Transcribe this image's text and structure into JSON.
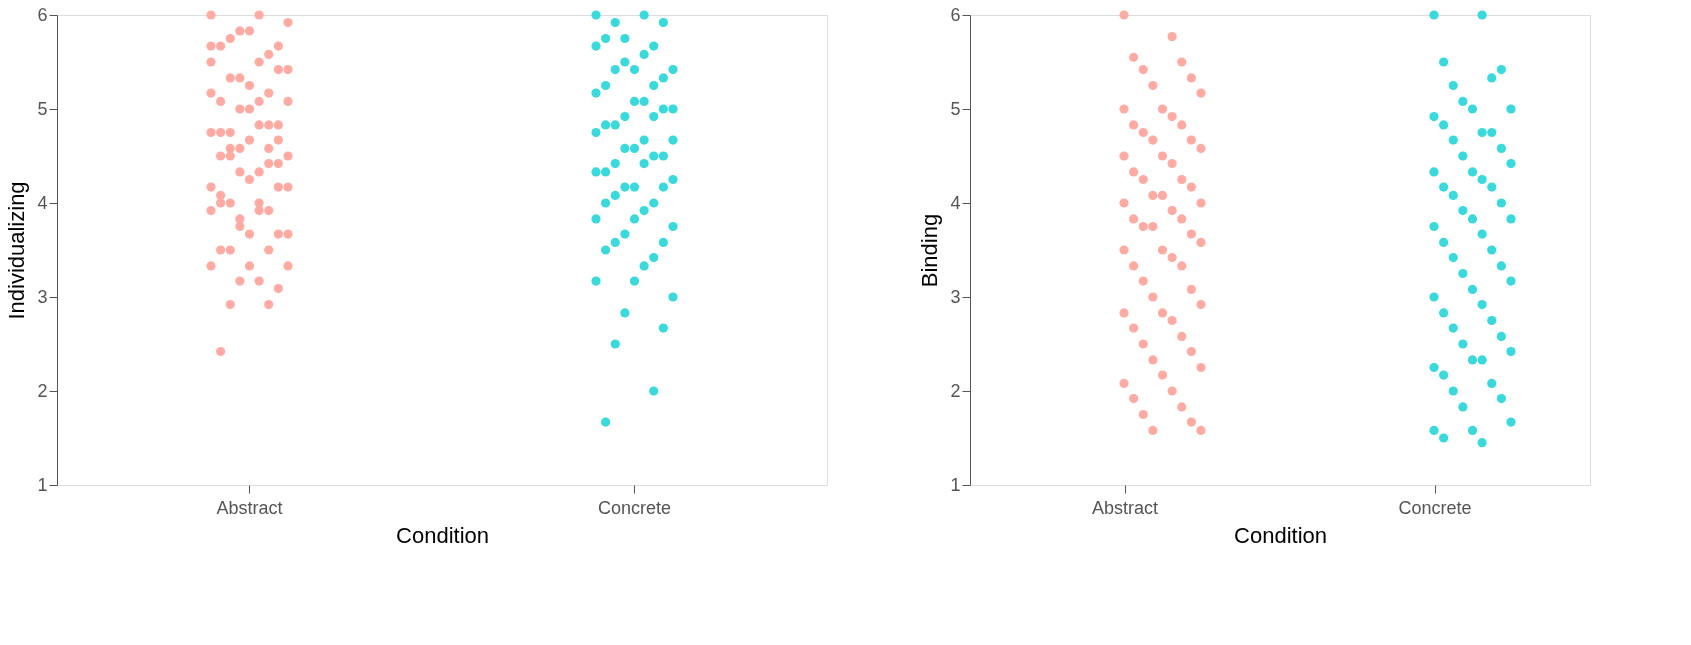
{
  "chart_data": [
    {
      "type": "scatter",
      "xlabel": "Condition",
      "ylabel": "Individualizing",
      "categories": [
        "Abstract",
        "Concrete"
      ],
      "ylim": [
        1,
        6
      ],
      "yticks": [
        1,
        2,
        3,
        4,
        5,
        6
      ],
      "grid": false,
      "marker": "circle",
      "series": [
        {
          "color": "#ffaba3",
          "x": [
            "Abstract",
            "Abstract",
            "Abstract",
            "Abstract",
            "Abstract",
            "Abstract",
            "Abstract",
            "Abstract",
            "Abstract",
            "Abstract",
            "Abstract",
            "Abstract",
            "Abstract",
            "Abstract",
            "Abstract",
            "Abstract",
            "Abstract",
            "Abstract",
            "Abstract",
            "Abstract",
            "Abstract",
            "Abstract",
            "Abstract",
            "Abstract",
            "Abstract",
            "Abstract",
            "Abstract",
            "Abstract",
            "Abstract",
            "Abstract",
            "Abstract",
            "Abstract",
            "Abstract",
            "Abstract",
            "Abstract",
            "Abstract",
            "Abstract",
            "Abstract",
            "Abstract",
            "Abstract",
            "Abstract",
            "Abstract",
            "Abstract",
            "Abstract",
            "Abstract",
            "Abstract",
            "Abstract",
            "Abstract",
            "Abstract",
            "Abstract",
            "Abstract",
            "Abstract",
            "Abstract",
            "Abstract",
            "Abstract",
            "Abstract",
            "Abstract",
            "Abstract",
            "Abstract",
            "Abstract",
            "Abstract",
            "Abstract",
            "Abstract",
            "Abstract",
            "Abstract",
            "Abstract",
            "Abstract",
            "Abstract",
            "Abstract",
            "Abstract"
          ],
          "values": [
            6.0,
            6.0,
            2.42,
            2.92,
            2.92,
            3.09,
            3.17,
            3.33,
            3.33,
            3.33,
            3.17,
            3.5,
            3.5,
            3.5,
            3.67,
            3.75,
            3.67,
            3.67,
            3.92,
            4.0,
            4.0,
            3.92,
            4.0,
            4.17,
            4.33,
            4.17,
            4.25,
            4.17,
            4.33,
            4.5,
            4.58,
            4.5,
            4.67,
            4.58,
            4.5,
            4.67,
            4.75,
            4.83,
            4.75,
            4.83,
            4.75,
            4.83,
            5.0,
            5.08,
            5.0,
            5.17,
            5.08,
            5.08,
            5.17,
            5.33,
            5.42,
            5.33,
            5.42,
            5.25,
            5.5,
            5.5,
            5.67,
            5.58,
            5.75,
            5.67,
            5.83,
            5.92,
            5.83,
            5.67,
            3.92,
            4.08,
            4.42,
            4.58,
            4.42,
            3.83
          ]
        },
        {
          "color": "#3ad9dc",
          "x": [
            "Concrete",
            "Concrete",
            "Concrete",
            "Concrete",
            "Concrete",
            "Concrete",
            "Concrete",
            "Concrete",
            "Concrete",
            "Concrete",
            "Concrete",
            "Concrete",
            "Concrete",
            "Concrete",
            "Concrete",
            "Concrete",
            "Concrete",
            "Concrete",
            "Concrete",
            "Concrete",
            "Concrete",
            "Concrete",
            "Concrete",
            "Concrete",
            "Concrete",
            "Concrete",
            "Concrete",
            "Concrete",
            "Concrete",
            "Concrete",
            "Concrete",
            "Concrete",
            "Concrete",
            "Concrete",
            "Concrete",
            "Concrete",
            "Concrete",
            "Concrete",
            "Concrete",
            "Concrete",
            "Concrete",
            "Concrete",
            "Concrete",
            "Concrete",
            "Concrete",
            "Concrete",
            "Concrete",
            "Concrete",
            "Concrete",
            "Concrete",
            "Concrete",
            "Concrete",
            "Concrete",
            "Concrete",
            "Concrete",
            "Concrete",
            "Concrete",
            "Concrete",
            "Concrete",
            "Concrete",
            "Concrete"
          ],
          "values": [
            6.0,
            6.0,
            1.67,
            2.0,
            2.5,
            2.67,
            2.83,
            3.0,
            3.17,
            3.17,
            3.33,
            3.5,
            3.42,
            3.58,
            3.58,
            3.67,
            3.75,
            3.83,
            3.83,
            3.92,
            4.0,
            4.0,
            4.08,
            4.17,
            4.17,
            4.25,
            4.17,
            4.33,
            4.42,
            4.33,
            4.5,
            4.42,
            4.5,
            4.58,
            4.67,
            4.58,
            4.75,
            4.67,
            4.83,
            4.92,
            4.83,
            5.0,
            4.92,
            5.0,
            5.08,
            5.17,
            5.08,
            5.25,
            5.25,
            5.42,
            5.33,
            5.5,
            5.42,
            5.42,
            5.67,
            5.58,
            5.75,
            5.67,
            5.92,
            5.92,
            5.75
          ]
        }
      ]
    },
    {
      "type": "scatter",
      "xlabel": "Condition",
      "ylabel": "Binding",
      "categories": [
        "Abstract",
        "Concrete"
      ],
      "ylim": [
        1,
        6
      ],
      "yticks": [
        1,
        2,
        3,
        4,
        5,
        6
      ],
      "grid": false,
      "marker": "circle",
      "series": [
        {
          "color": "#ffaba3",
          "x": [
            "Abstract",
            "Abstract",
            "Abstract",
            "Abstract",
            "Abstract",
            "Abstract",
            "Abstract",
            "Abstract",
            "Abstract",
            "Abstract",
            "Abstract",
            "Abstract",
            "Abstract",
            "Abstract",
            "Abstract",
            "Abstract",
            "Abstract",
            "Abstract",
            "Abstract",
            "Abstract",
            "Abstract",
            "Abstract",
            "Abstract",
            "Abstract",
            "Abstract",
            "Abstract",
            "Abstract",
            "Abstract",
            "Abstract",
            "Abstract",
            "Abstract",
            "Abstract",
            "Abstract",
            "Abstract",
            "Abstract",
            "Abstract",
            "Abstract",
            "Abstract",
            "Abstract",
            "Abstract",
            "Abstract",
            "Abstract",
            "Abstract",
            "Abstract",
            "Abstract",
            "Abstract",
            "Abstract",
            "Abstract",
            "Abstract",
            "Abstract",
            "Abstract",
            "Abstract",
            "Abstract",
            "Abstract",
            "Abstract",
            "Abstract",
            "Abstract",
            "Abstract",
            "Abstract",
            "Abstract",
            "Abstract",
            "Abstract"
          ],
          "values": [
            6.0,
            5.77,
            5.55,
            5.5,
            5.42,
            5.33,
            5.25,
            5.17,
            5.0,
            5.0,
            4.92,
            4.83,
            4.83,
            4.75,
            4.67,
            4.67,
            4.58,
            4.5,
            4.5,
            4.42,
            4.33,
            4.25,
            4.25,
            4.17,
            4.08,
            4.0,
            4.08,
            4.0,
            3.92,
            3.83,
            3.83,
            3.75,
            3.67,
            3.75,
            3.58,
            3.5,
            3.5,
            3.42,
            3.33,
            3.33,
            3.17,
            3.08,
            3.0,
            2.92,
            2.83,
            2.83,
            2.75,
            2.67,
            2.58,
            2.5,
            2.42,
            2.33,
            2.25,
            2.17,
            2.08,
            2.0,
            1.92,
            1.83,
            1.75,
            1.67,
            1.58,
            1.58
          ]
        },
        {
          "color": "#3ad9dc",
          "x": [
            "Concrete",
            "Concrete",
            "Concrete",
            "Concrete",
            "Concrete",
            "Concrete",
            "Concrete",
            "Concrete",
            "Concrete",
            "Concrete",
            "Concrete",
            "Concrete",
            "Concrete",
            "Concrete",
            "Concrete",
            "Concrete",
            "Concrete",
            "Concrete",
            "Concrete",
            "Concrete",
            "Concrete",
            "Concrete",
            "Concrete",
            "Concrete",
            "Concrete",
            "Concrete",
            "Concrete",
            "Concrete",
            "Concrete",
            "Concrete",
            "Concrete",
            "Concrete",
            "Concrete",
            "Concrete",
            "Concrete",
            "Concrete",
            "Concrete",
            "Concrete",
            "Concrete",
            "Concrete",
            "Concrete",
            "Concrete",
            "Concrete",
            "Concrete",
            "Concrete",
            "Concrete",
            "Concrete",
            "Concrete",
            "Concrete",
            "Concrete",
            "Concrete",
            "Concrete",
            "Concrete",
            "Concrete",
            "Concrete",
            "Concrete",
            "Concrete"
          ],
          "values": [
            6.0,
            6.0,
            5.5,
            5.33,
            5.25,
            5.42,
            5.08,
            5.0,
            5.0,
            4.92,
            4.75,
            4.83,
            4.75,
            4.67,
            4.58,
            4.5,
            4.42,
            4.33,
            4.33,
            4.25,
            4.17,
            4.17,
            4.08,
            4.0,
            3.92,
            3.83,
            3.83,
            3.75,
            3.67,
            3.58,
            3.5,
            3.42,
            3.33,
            3.25,
            3.17,
            3.08,
            3.0,
            2.92,
            2.83,
            2.75,
            2.67,
            2.58,
            2.5,
            2.42,
            2.33,
            2.25,
            2.33,
            2.17,
            2.08,
            2.0,
            1.92,
            1.83,
            1.67,
            1.58,
            1.58,
            1.45,
            1.5
          ]
        }
      ]
    }
  ]
}
